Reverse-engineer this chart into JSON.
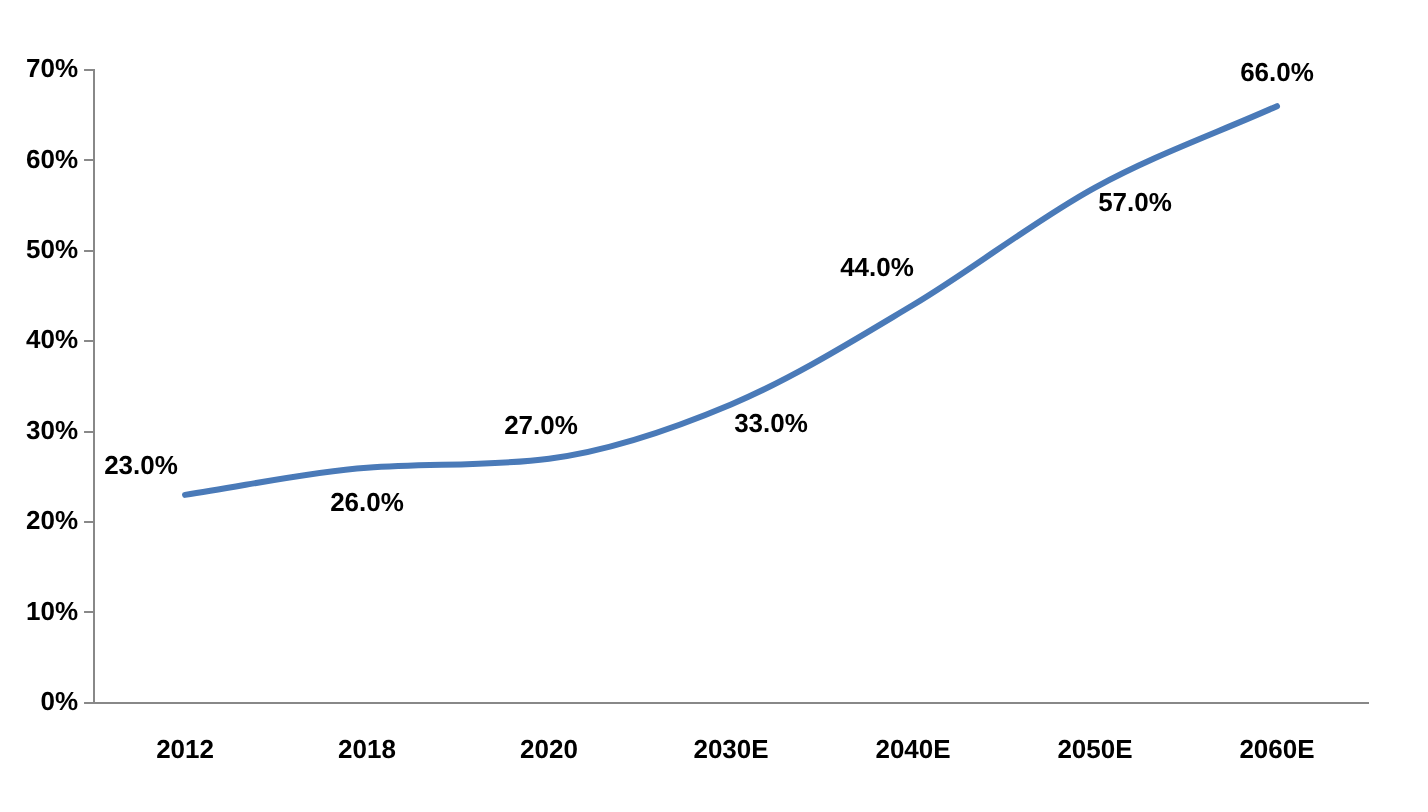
{
  "chart_data": {
    "type": "line",
    "categories": [
      "2012",
      "2018",
      "2020",
      "2030E",
      "2040E",
      "2050E",
      "2060E"
    ],
    "series": [
      {
        "color": "#4a7ab8",
        "values": [
          23,
          26,
          27,
          33,
          44,
          57,
          66
        ],
        "value_labels": [
          "23.0%",
          "26.0%",
          "27.0%",
          "33.0%",
          "44.0%",
          "57.0%",
          "66.0%"
        ]
      }
    ],
    "ylim": [
      0,
      70
    ],
    "yticks": [
      {
        "value": 0,
        "label": "0%"
      },
      {
        "value": 10,
        "label": "10%"
      },
      {
        "value": 20,
        "label": "20%"
      },
      {
        "value": 30,
        "label": "30%"
      },
      {
        "value": 40,
        "label": "40%"
      },
      {
        "value": 50,
        "label": "50%"
      },
      {
        "value": 60,
        "label": "60%"
      },
      {
        "value": 70,
        "label": "70%"
      }
    ],
    "grid": false,
    "legend": false,
    "marker": "none",
    "line_style": "solid"
  }
}
